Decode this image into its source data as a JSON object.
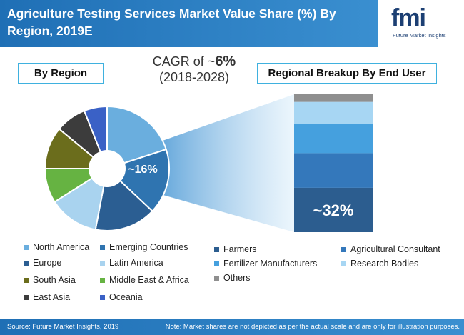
{
  "title": "Agriculture Testing Services Market Value Share (%) By Region, 2019E",
  "logo": {
    "name": "fmi",
    "subtitle": "Future Market Insights"
  },
  "cagr": {
    "label": "CAGR of ~",
    "value": "6%",
    "period": "(2018-2028)"
  },
  "footer": {
    "source": "Source: Future Market Insights, 2019",
    "note": "Note: Market shares are not depicted as per the actual scale and are only for illustration purposes."
  },
  "colors": {
    "header": "#1f6fb5",
    "north_america": "#6aaede",
    "emerging_countries": "#2f74b0",
    "europe": "#2b5e92",
    "latin_america": "#a9d3ef",
    "south_asia": "#6b6d1c",
    "middle_east_africa": "#66b342",
    "east_asia": "#3c3c3c",
    "oceania": "#3a61c6",
    "farmers": "#2c5d8f",
    "agricultural_consultant": "#3478bb",
    "fertilizer_manufacturers": "#45a0de",
    "research_bodies": "#a7d6f3",
    "others": "#8f8f8f"
  },
  "chart_data": [
    {
      "type": "pie",
      "title": "By Region",
      "donut": true,
      "highlight_label": "~16%",
      "slices": [
        {
          "name": "North America",
          "value": 20
        },
        {
          "name": "Emerging Countries",
          "value": 17
        },
        {
          "name": "Europe",
          "value": 16
        },
        {
          "name": "Latin America",
          "value": 13
        },
        {
          "name": "Middle East & Africa",
          "value": 9
        },
        {
          "name": "South Asia",
          "value": 11
        },
        {
          "name": "East Asia",
          "value": 8
        },
        {
          "name": "Oceania",
          "value": 6
        }
      ],
      "legend": [
        "North America",
        "Emerging Countries",
        "Europe",
        "Latin America",
        "South Asia",
        "Middle East & Africa",
        "East Asia",
        "Oceania"
      ]
    },
    {
      "type": "bar",
      "stacked": true,
      "title": "Regional Breakup By End User",
      "highlight_label": "~32%",
      "segments": [
        {
          "name": "Farmers",
          "value": 32
        },
        {
          "name": "Agricultural Consultant",
          "value": 25
        },
        {
          "name": "Fertilizer Manufacturers",
          "value": 21
        },
        {
          "name": "Research Bodies",
          "value": 16
        },
        {
          "name": "Others",
          "value": 6
        }
      ],
      "legend": [
        "Farmers",
        "Agricultural Consultant",
        "Fertilizer Manufacturers",
        "Research Bodies",
        "Others"
      ]
    }
  ]
}
